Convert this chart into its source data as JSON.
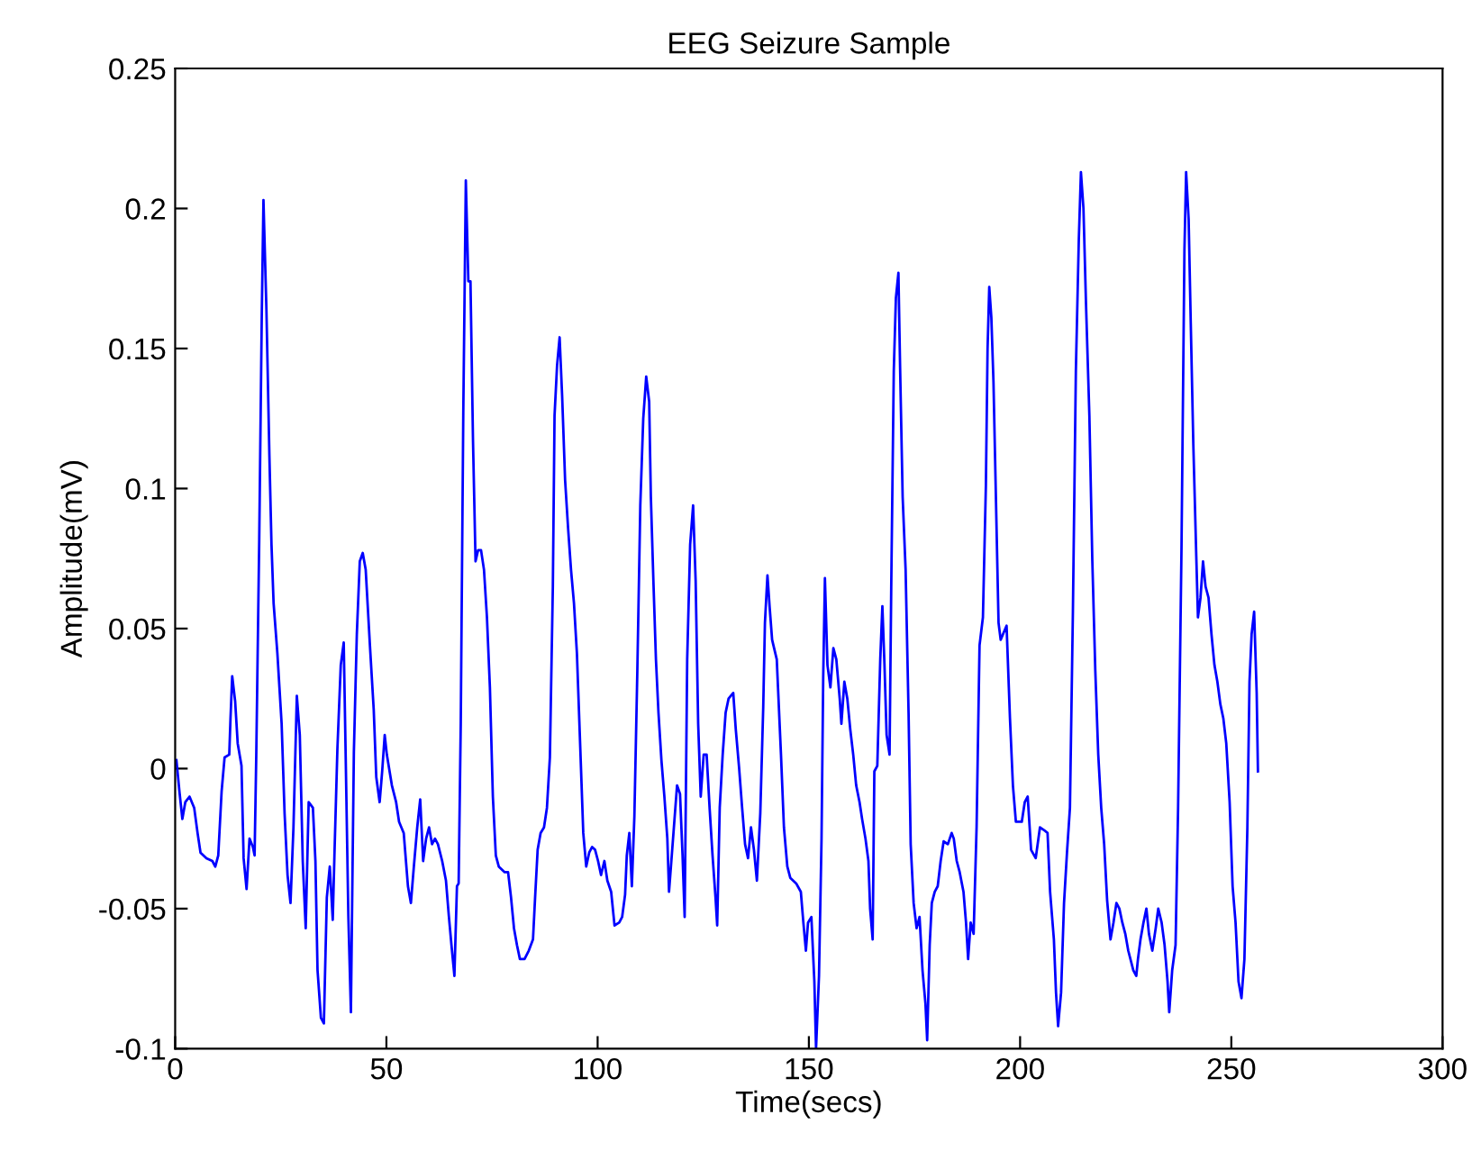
{
  "chart_data": {
    "type": "line",
    "title": "EEG Seizure Sample",
    "xlabel": "Time(secs)",
    "ylabel": "Amplitude(mV)",
    "xlim": [
      0,
      300
    ],
    "xticks": [
      0,
      50,
      100,
      150,
      200,
      250,
      300
    ],
    "ylim": [
      -0.1,
      0.25
    ],
    "yticks": [
      -0.1,
      -0.05,
      0,
      0.05,
      0.1,
      0.15,
      0.2,
      0.25
    ],
    "grid": false,
    "legend": false,
    "marker": "none",
    "line_style": "solid",
    "series": [
      {
        "color": "#0000ff",
        "x": [
          0.3,
          1.0,
          1.7,
          2.4,
          3.4,
          4.5,
          5.3,
          6.0,
          7.4,
          8.8,
          9.5,
          10.2,
          11.0,
          11.7,
          12.8,
          13.1,
          13.5,
          14.2,
          14.8,
          15.7,
          16.2,
          16.9,
          17.6,
          18.4,
          18.8,
          19.2,
          19.9,
          20.5,
          20.9,
          21.6,
          22.3,
          22.8,
          23.3,
          24.2,
          25.2,
          25.9,
          26.6,
          27.3,
          28.0,
          28.8,
          29.5,
          30.2,
          30.9,
          31.6,
          32.6,
          33.2,
          33.7,
          34.5,
          35.2,
          35.9,
          36.6,
          37.3,
          37.7,
          38.4,
          39.2,
          39.9,
          40.4,
          41.0,
          41.6,
          42.3,
          43.0,
          43.7,
          44.4,
          45.1,
          46.1,
          47.0,
          47.6,
          48.4,
          49.0,
          49.6,
          50.1,
          51.3,
          52.3,
          53.0,
          54.1,
          55.1,
          55.8,
          56.5,
          57.3,
          58.0,
          58.7,
          59.4,
          60.1,
          60.8,
          61.5,
          62.2,
          63.2,
          64.1,
          64.8,
          65.4,
          66.1,
          66.7,
          67.1,
          67.6,
          68.2,
          68.8,
          69.4,
          69.9,
          70.5,
          71.1,
          71.7,
          72.4,
          73.1,
          73.8,
          74.5,
          75.2,
          75.9,
          76.6,
          78.0,
          78.8,
          79.5,
          80.2,
          80.9,
          81.6,
          82.7,
          83.7,
          84.7,
          85.2,
          85.8,
          86.5,
          87.3,
          88.0,
          88.7,
          89.4,
          89.8,
          90.4,
          91.0,
          91.6,
          92.3,
          93.0,
          93.7,
          94.4,
          95.1,
          95.9,
          96.6,
          97.3,
          98.0,
          98.7,
          99.4,
          100.1,
          100.8,
          101.6,
          102.3,
          103.2,
          104.0,
          105.1,
          105.8,
          106.5,
          106.9,
          107.5,
          108.1,
          108.7,
          109.4,
          110.1,
          110.8,
          111.5,
          112.2,
          112.6,
          113.2,
          113.8,
          114.4,
          115.1,
          115.8,
          116.5,
          116.9,
          117.5,
          118.2,
          118.8,
          119.5,
          120.1,
          120.6,
          121.2,
          121.9,
          122.6,
          123.2,
          123.8,
          124.4,
          125.1,
          125.8,
          126.5,
          127.2,
          127.9,
          128.3,
          128.9,
          129.6,
          130.3,
          131.0,
          132.1,
          132.7,
          133.5,
          134.2,
          134.9,
          135.6,
          136.3,
          137.0,
          137.7,
          138.5,
          139.2,
          139.6,
          140.2,
          140.7,
          141.3,
          142.4,
          143.4,
          144.1,
          144.9,
          145.6,
          147.0,
          148.1,
          148.7,
          149.3,
          149.8,
          150.6,
          151.3,
          151.7,
          152.4,
          153.0,
          153.4,
          153.8,
          154.4,
          155.1,
          155.8,
          156.5,
          157.3,
          157.7,
          158.4,
          159.1,
          159.8,
          160.5,
          161.2,
          162.0,
          162.6,
          163.4,
          164.1,
          164.5,
          165.1,
          165.5,
          166.2,
          166.9,
          167.4,
          167.9,
          168.4,
          169.1,
          169.5,
          170.1,
          170.6,
          171.2,
          171.6,
          172.2,
          172.9,
          173.6,
          174.1,
          174.8,
          175.5,
          176.2,
          176.9,
          177.6,
          178.0,
          178.6,
          179.1,
          179.8,
          180.5,
          181.2,
          181.9,
          182.9,
          183.8,
          184.3,
          185.0,
          185.7,
          186.6,
          187.2,
          187.7,
          188.3,
          189.0,
          189.7,
          190.4,
          191.2,
          191.9,
          192.3,
          192.7,
          193.2,
          193.7,
          194.3,
          194.9,
          195.4,
          196.8,
          197.6,
          198.3,
          199.0,
          200.4,
          201.1,
          201.8,
          202.6,
          203.7,
          204.7,
          205.7,
          206.5,
          207.1,
          208.0,
          208.5,
          209.0,
          209.7,
          210.4,
          211.1,
          211.8,
          212.5,
          213.2,
          213.9,
          214.4,
          215.0,
          215.6,
          216.4,
          217.1,
          217.8,
          218.5,
          219.2,
          219.9,
          220.6,
          221.4,
          222.1,
          222.8,
          223.5,
          224.2,
          224.9,
          225.6,
          226.8,
          227.5,
          227.9,
          228.5,
          229.2,
          229.9,
          230.5,
          231.3,
          232.1,
          232.7,
          233.5,
          234.2,
          234.9,
          235.3,
          236.0,
          236.8,
          237.4,
          238.2,
          238.9,
          239.3,
          239.9,
          240.4,
          241.0,
          241.7,
          242.1,
          242.7,
          243.3,
          243.9,
          244.6,
          245.3,
          246.0,
          246.7,
          247.4,
          248.1,
          248.8,
          249.6,
          250.3,
          251.0,
          251.7,
          252.4,
          253.1,
          253.8,
          254.3,
          254.8,
          255.4,
          256.0,
          256.3
        ],
        "values": [
          0.003,
          -0.008,
          -0.018,
          -0.012,
          -0.01,
          -0.014,
          -0.023,
          -0.03,
          -0.032,
          -0.033,
          -0.035,
          -0.031,
          -0.008,
          0.004,
          0.005,
          0.018,
          0.033,
          0.024,
          0.009,
          0.001,
          -0.032,
          -0.043,
          -0.025,
          -0.028,
          -0.031,
          0.005,
          0.082,
          0.162,
          0.203,
          0.164,
          0.112,
          0.08,
          0.059,
          0.041,
          0.016,
          -0.016,
          -0.038,
          -0.048,
          -0.021,
          0.026,
          0.012,
          -0.033,
          -0.057,
          -0.012,
          -0.014,
          -0.033,
          -0.072,
          -0.089,
          -0.091,
          -0.046,
          -0.035,
          -0.054,
          -0.031,
          0.007,
          0.037,
          0.045,
          0.001,
          -0.053,
          -0.087,
          0.006,
          0.048,
          0.074,
          0.077,
          0.071,
          0.044,
          0.021,
          -0.003,
          -0.012,
          -0.001,
          0.012,
          0.005,
          -0.006,
          -0.012,
          -0.019,
          -0.023,
          -0.042,
          -0.048,
          -0.035,
          -0.021,
          -0.011,
          -0.033,
          -0.025,
          -0.021,
          -0.027,
          -0.025,
          -0.027,
          -0.033,
          -0.04,
          -0.053,
          -0.063,
          -0.074,
          -0.042,
          -0.041,
          0.016,
          0.127,
          0.21,
          0.174,
          0.174,
          0.117,
          0.074,
          0.078,
          0.078,
          0.071,
          0.054,
          0.029,
          -0.01,
          -0.031,
          -0.035,
          -0.037,
          -0.037,
          -0.046,
          -0.057,
          -0.063,
          -0.068,
          -0.068,
          -0.065,
          -0.061,
          -0.046,
          -0.029,
          -0.023,
          -0.021,
          -0.014,
          0.004,
          0.065,
          0.126,
          0.144,
          0.154,
          0.133,
          0.103,
          0.086,
          0.071,
          0.059,
          0.041,
          0.007,
          -0.023,
          -0.035,
          -0.03,
          -0.028,
          -0.029,
          -0.033,
          -0.038,
          -0.033,
          -0.04,
          -0.044,
          -0.056,
          -0.055,
          -0.053,
          -0.045,
          -0.031,
          -0.023,
          -0.042,
          -0.017,
          0.035,
          0.094,
          0.125,
          0.14,
          0.131,
          0.097,
          0.067,
          0.039,
          0.02,
          0.003,
          -0.01,
          -0.025,
          -0.044,
          -0.032,
          -0.018,
          -0.006,
          -0.009,
          -0.031,
          -0.053,
          0.039,
          0.08,
          0.094,
          0.067,
          0.016,
          -0.01,
          0.005,
          0.005,
          -0.014,
          -0.031,
          -0.046,
          -0.056,
          -0.014,
          0.005,
          0.02,
          0.025,
          0.027,
          0.014,
          0.0,
          -0.014,
          -0.027,
          -0.032,
          -0.021,
          -0.029,
          -0.04,
          -0.016,
          0.022,
          0.052,
          0.069,
          0.058,
          0.046,
          0.039,
          0.005,
          -0.021,
          -0.035,
          -0.039,
          -0.041,
          -0.044,
          -0.055,
          -0.065,
          -0.055,
          -0.053,
          -0.076,
          -0.1,
          -0.074,
          -0.025,
          0.033,
          0.068,
          0.037,
          0.029,
          0.043,
          0.039,
          0.025,
          0.016,
          0.031,
          0.025,
          0.014,
          0.005,
          -0.006,
          -0.012,
          -0.018,
          -0.025,
          -0.033,
          -0.05,
          -0.061,
          -0.001,
          0.001,
          0.039,
          0.058,
          0.037,
          0.012,
          0.005,
          0.065,
          0.142,
          0.168,
          0.177,
          0.143,
          0.097,
          0.071,
          0.02,
          -0.027,
          -0.048,
          -0.057,
          -0.053,
          -0.072,
          -0.084,
          -0.097,
          -0.063,
          -0.048,
          -0.044,
          -0.042,
          -0.033,
          -0.026,
          -0.027,
          -0.023,
          -0.025,
          -0.033,
          -0.037,
          -0.044,
          -0.055,
          -0.068,
          -0.055,
          -0.059,
          -0.021,
          0.044,
          0.054,
          0.101,
          0.15,
          0.172,
          0.161,
          0.138,
          0.095,
          0.052,
          0.046,
          0.051,
          0.018,
          -0.006,
          -0.019,
          -0.019,
          -0.012,
          -0.01,
          -0.029,
          -0.032,
          -0.021,
          -0.022,
          -0.023,
          -0.044,
          -0.061,
          -0.08,
          -0.092,
          -0.08,
          -0.048,
          -0.03,
          -0.014,
          0.056,
          0.142,
          0.189,
          0.213,
          0.2,
          0.166,
          0.126,
          0.074,
          0.035,
          0.005,
          -0.014,
          -0.027,
          -0.047,
          -0.061,
          -0.055,
          -0.048,
          -0.05,
          -0.055,
          -0.059,
          -0.065,
          -0.072,
          -0.074,
          -0.068,
          -0.061,
          -0.055,
          -0.05,
          -0.059,
          -0.065,
          -0.057,
          -0.05,
          -0.055,
          -0.063,
          -0.076,
          -0.087,
          -0.072,
          -0.063,
          -0.014,
          0.078,
          0.185,
          0.213,
          0.196,
          0.159,
          0.116,
          0.076,
          0.054,
          0.061,
          0.074,
          0.065,
          0.061,
          0.048,
          0.037,
          0.031,
          0.023,
          0.018,
          0.009,
          -0.012,
          -0.042,
          -0.055,
          -0.076,
          -0.082,
          -0.068,
          -0.021,
          0.031,
          0.048,
          0.056,
          0.027,
          -0.001
        ]
      }
    ]
  }
}
